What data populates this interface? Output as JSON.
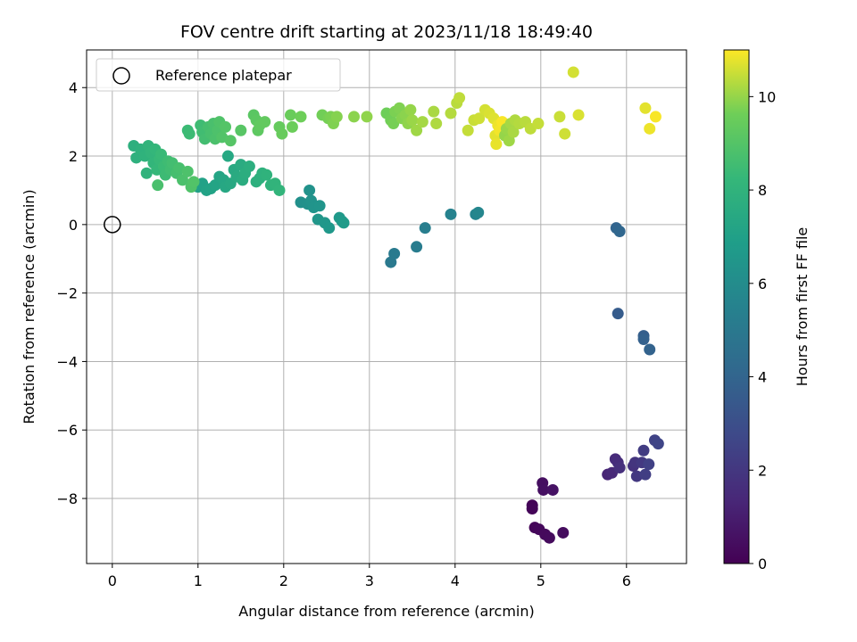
{
  "chart_data": {
    "type": "scatter",
    "title": "FOV centre drift starting at 2023/11/18 18:49:40",
    "xlabel": "Angular distance from reference (arcmin)",
    "ylabel": "Rotation from reference (arcmin)",
    "xlim": [
      -0.3,
      6.7
    ],
    "ylim": [
      -9.9,
      5.1
    ],
    "xticks": [
      0,
      1,
      2,
      3,
      4,
      5,
      6
    ],
    "yticks": [
      -8,
      -6,
      -4,
      -2,
      0,
      2,
      4
    ],
    "grid": true,
    "legend": {
      "location": "top-left",
      "entries": [
        "Reference platepar"
      ]
    },
    "reference_point": {
      "x": 0,
      "y": 0
    },
    "colorbar": {
      "label": "Hours from first FF file",
      "colormap": "viridis",
      "range": [
        0,
        11
      ],
      "ticks": [
        0,
        2,
        4,
        6,
        8,
        10
      ]
    },
    "points": [
      {
        "x": 4.9,
        "y": -8.2,
        "c": 0.1
      },
      {
        "x": 4.9,
        "y": -8.3,
        "c": 0.15
      },
      {
        "x": 4.93,
        "y": -8.85,
        "c": 0.2
      },
      {
        "x": 4.98,
        "y": -8.9,
        "c": 0.25
      },
      {
        "x": 5.05,
        "y": -9.05,
        "c": 0.3
      },
      {
        "x": 5.1,
        "y": -9.15,
        "c": 0.35
      },
      {
        "x": 5.26,
        "y": -9.0,
        "c": 0.4
      },
      {
        "x": 5.02,
        "y": -7.55,
        "c": 0.45
      },
      {
        "x": 5.03,
        "y": -7.75,
        "c": 0.5
      },
      {
        "x": 5.14,
        "y": -7.75,
        "c": 0.6
      },
      {
        "x": 5.78,
        "y": -7.3,
        "c": 1.3
      },
      {
        "x": 5.83,
        "y": -7.25,
        "c": 1.4
      },
      {
        "x": 5.87,
        "y": -6.85,
        "c": 1.5
      },
      {
        "x": 5.9,
        "y": -6.95,
        "c": 1.6
      },
      {
        "x": 5.92,
        "y": -7.1,
        "c": 1.7
      },
      {
        "x": 6.08,
        "y": -7.05,
        "c": 1.8
      },
      {
        "x": 6.1,
        "y": -6.95,
        "c": 1.9
      },
      {
        "x": 6.12,
        "y": -7.35,
        "c": 2.0
      },
      {
        "x": 6.18,
        "y": -6.95,
        "c": 2.1
      },
      {
        "x": 6.2,
        "y": -6.6,
        "c": 2.2
      },
      {
        "x": 6.22,
        "y": -7.3,
        "c": 2.3
      },
      {
        "x": 6.26,
        "y": -7.0,
        "c": 2.4
      },
      {
        "x": 6.33,
        "y": -6.3,
        "c": 2.5
      },
      {
        "x": 6.37,
        "y": -6.4,
        "c": 2.6
      },
      {
        "x": 5.9,
        "y": -2.6,
        "c": 3.6
      },
      {
        "x": 6.2,
        "y": -3.25,
        "c": 3.7
      },
      {
        "x": 6.2,
        "y": -3.35,
        "c": 3.8
      },
      {
        "x": 6.27,
        "y": -3.65,
        "c": 3.9
      },
      {
        "x": 5.88,
        "y": -0.1,
        "c": 4.0
      },
      {
        "x": 5.92,
        "y": -0.2,
        "c": 4.1
      },
      {
        "x": 3.25,
        "y": -1.1,
        "c": 5.0
      },
      {
        "x": 3.29,
        "y": -0.85,
        "c": 5.1
      },
      {
        "x": 3.55,
        "y": -0.65,
        "c": 5.2
      },
      {
        "x": 3.65,
        "y": -0.1,
        "c": 5.3
      },
      {
        "x": 3.95,
        "y": 0.3,
        "c": 5.5
      },
      {
        "x": 4.24,
        "y": 0.3,
        "c": 5.6
      },
      {
        "x": 4.27,
        "y": 0.35,
        "c": 5.7
      },
      {
        "x": 2.2,
        "y": 0.65,
        "c": 6.2
      },
      {
        "x": 2.28,
        "y": 0.6,
        "c": 6.25
      },
      {
        "x": 2.3,
        "y": 1.0,
        "c": 6.3
      },
      {
        "x": 2.32,
        "y": 0.7,
        "c": 6.35
      },
      {
        "x": 2.35,
        "y": 0.5,
        "c": 6.4
      },
      {
        "x": 2.42,
        "y": 0.55,
        "c": 6.45
      },
      {
        "x": 2.4,
        "y": 0.15,
        "c": 6.5
      },
      {
        "x": 2.48,
        "y": 0.05,
        "c": 6.55
      },
      {
        "x": 2.53,
        "y": -0.1,
        "c": 6.6
      },
      {
        "x": 2.65,
        "y": 0.2,
        "c": 6.65
      },
      {
        "x": 2.68,
        "y": 0.1,
        "c": 6.7
      },
      {
        "x": 2.7,
        "y": 0.05,
        "c": 6.75
      },
      {
        "x": 1.0,
        "y": 1.1,
        "c": 7.0
      },
      {
        "x": 1.05,
        "y": 1.2,
        "c": 7.05
      },
      {
        "x": 1.1,
        "y": 1.0,
        "c": 7.1
      },
      {
        "x": 1.15,
        "y": 1.05,
        "c": 7.15
      },
      {
        "x": 1.2,
        "y": 1.15,
        "c": 7.2
      },
      {
        "x": 1.25,
        "y": 1.4,
        "c": 7.25
      },
      {
        "x": 1.3,
        "y": 1.3,
        "c": 7.3
      },
      {
        "x": 1.32,
        "y": 1.1,
        "c": 7.35
      },
      {
        "x": 1.35,
        "y": 2.0,
        "c": 7.4
      },
      {
        "x": 1.38,
        "y": 1.2,
        "c": 7.45
      },
      {
        "x": 1.42,
        "y": 1.6,
        "c": 7.5
      },
      {
        "x": 1.45,
        "y": 1.4,
        "c": 7.55
      },
      {
        "x": 1.5,
        "y": 1.75,
        "c": 7.6
      },
      {
        "x": 1.52,
        "y": 1.3,
        "c": 7.65
      },
      {
        "x": 1.55,
        "y": 1.5,
        "c": 7.7
      },
      {
        "x": 1.6,
        "y": 1.7,
        "c": 7.75
      },
      {
        "x": 1.68,
        "y": 1.25,
        "c": 7.8
      },
      {
        "x": 1.72,
        "y": 1.35,
        "c": 7.85
      },
      {
        "x": 1.75,
        "y": 1.5,
        "c": 7.9
      },
      {
        "x": 1.8,
        "y": 1.45,
        "c": 7.95
      },
      {
        "x": 1.85,
        "y": 1.15,
        "c": 8.0
      },
      {
        "x": 1.9,
        "y": 1.2,
        "c": 8.05
      },
      {
        "x": 1.95,
        "y": 1.0,
        "c": 8.1
      },
      {
        "x": 0.25,
        "y": 2.3,
        "c": 7.8
      },
      {
        "x": 0.28,
        "y": 1.95,
        "c": 7.85
      },
      {
        "x": 0.33,
        "y": 2.2,
        "c": 7.9
      },
      {
        "x": 0.38,
        "y": 2.0,
        "c": 7.95
      },
      {
        "x": 0.4,
        "y": 1.5,
        "c": 8.0
      },
      {
        "x": 0.42,
        "y": 2.3,
        "c": 8.05
      },
      {
        "x": 0.45,
        "y": 2.1,
        "c": 8.1
      },
      {
        "x": 0.48,
        "y": 1.8,
        "c": 8.15
      },
      {
        "x": 0.5,
        "y": 2.2,
        "c": 8.2
      },
      {
        "x": 0.52,
        "y": 1.6,
        "c": 8.25
      },
      {
        "x": 0.55,
        "y": 1.9,
        "c": 8.3
      },
      {
        "x": 0.57,
        "y": 2.05,
        "c": 8.35
      },
      {
        "x": 0.6,
        "y": 1.7,
        "c": 8.4
      },
      {
        "x": 0.62,
        "y": 1.45,
        "c": 8.45
      },
      {
        "x": 0.65,
        "y": 1.85,
        "c": 8.5
      },
      {
        "x": 0.68,
        "y": 1.6,
        "c": 8.55
      },
      {
        "x": 0.7,
        "y": 1.8,
        "c": 8.6
      },
      {
        "x": 0.75,
        "y": 1.5,
        "c": 8.65
      },
      {
        "x": 0.78,
        "y": 1.65,
        "c": 8.7
      },
      {
        "x": 0.53,
        "y": 1.15,
        "c": 8.75
      },
      {
        "x": 0.82,
        "y": 1.3,
        "c": 8.8
      },
      {
        "x": 0.88,
        "y": 1.55,
        "c": 8.85
      },
      {
        "x": 0.92,
        "y": 1.1,
        "c": 8.9
      },
      {
        "x": 0.95,
        "y": 1.25,
        "c": 8.95
      },
      {
        "x": 0.88,
        "y": 2.75,
        "c": 8.4
      },
      {
        "x": 0.9,
        "y": 2.65,
        "c": 8.45
      },
      {
        "x": 1.03,
        "y": 2.9,
        "c": 8.5
      },
      {
        "x": 1.05,
        "y": 2.7,
        "c": 8.55
      },
      {
        "x": 1.08,
        "y": 2.5,
        "c": 8.6
      },
      {
        "x": 1.12,
        "y": 2.85,
        "c": 8.65
      },
      {
        "x": 1.15,
        "y": 2.65,
        "c": 8.7
      },
      {
        "x": 1.18,
        "y": 2.95,
        "c": 8.75
      },
      {
        "x": 1.2,
        "y": 2.5,
        "c": 8.8
      },
      {
        "x": 1.23,
        "y": 2.75,
        "c": 8.85
      },
      {
        "x": 1.25,
        "y": 3.0,
        "c": 8.9
      },
      {
        "x": 1.28,
        "y": 2.55,
        "c": 8.95
      },
      {
        "x": 1.32,
        "y": 2.85,
        "c": 9.0
      },
      {
        "x": 1.38,
        "y": 2.45,
        "c": 9.05
      },
      {
        "x": 1.5,
        "y": 2.75,
        "c": 9.1
      },
      {
        "x": 1.65,
        "y": 3.2,
        "c": 9.15
      },
      {
        "x": 1.68,
        "y": 3.05,
        "c": 9.2
      },
      {
        "x": 1.7,
        "y": 2.75,
        "c": 9.25
      },
      {
        "x": 1.72,
        "y": 2.9,
        "c": 9.3
      },
      {
        "x": 1.78,
        "y": 3.0,
        "c": 9.35
      },
      {
        "x": 1.95,
        "y": 2.85,
        "c": 9.4
      },
      {
        "x": 1.98,
        "y": 2.65,
        "c": 9.45
      },
      {
        "x": 2.08,
        "y": 3.2,
        "c": 9.5
      },
      {
        "x": 2.1,
        "y": 2.85,
        "c": 9.55
      },
      {
        "x": 2.2,
        "y": 3.15,
        "c": 9.6
      },
      {
        "x": 2.45,
        "y": 3.2,
        "c": 9.65
      },
      {
        "x": 2.52,
        "y": 3.1,
        "c": 9.7
      },
      {
        "x": 2.55,
        "y": 3.15,
        "c": 9.75
      },
      {
        "x": 2.58,
        "y": 2.95,
        "c": 9.8
      },
      {
        "x": 2.62,
        "y": 3.15,
        "c": 9.85
      },
      {
        "x": 2.82,
        "y": 3.15,
        "c": 9.9
      },
      {
        "x": 2.97,
        "y": 3.15,
        "c": 9.95
      },
      {
        "x": 3.2,
        "y": 3.25,
        "c": 9.6
      },
      {
        "x": 3.25,
        "y": 3.05,
        "c": 9.65
      },
      {
        "x": 3.28,
        "y": 2.95,
        "c": 9.7
      },
      {
        "x": 3.3,
        "y": 3.3,
        "c": 9.75
      },
      {
        "x": 3.35,
        "y": 3.4,
        "c": 9.8
      },
      {
        "x": 3.38,
        "y": 3.1,
        "c": 9.85
      },
      {
        "x": 3.42,
        "y": 3.2,
        "c": 9.9
      },
      {
        "x": 3.45,
        "y": 2.95,
        "c": 9.95
      },
      {
        "x": 3.48,
        "y": 3.35,
        "c": 10.0
      },
      {
        "x": 3.5,
        "y": 3.05,
        "c": 10.05
      },
      {
        "x": 3.55,
        "y": 2.75,
        "c": 10.1
      },
      {
        "x": 3.62,
        "y": 3.0,
        "c": 10.15
      },
      {
        "x": 3.75,
        "y": 3.3,
        "c": 10.2
      },
      {
        "x": 3.78,
        "y": 2.95,
        "c": 10.25
      },
      {
        "x": 3.95,
        "y": 3.25,
        "c": 10.3
      },
      {
        "x": 4.02,
        "y": 3.55,
        "c": 10.35
      },
      {
        "x": 4.05,
        "y": 3.7,
        "c": 10.4
      },
      {
        "x": 4.15,
        "y": 2.75,
        "c": 10.45
      },
      {
        "x": 4.22,
        "y": 3.05,
        "c": 10.5
      },
      {
        "x": 4.28,
        "y": 3.1,
        "c": 10.55
      },
      {
        "x": 4.35,
        "y": 3.35,
        "c": 10.6
      },
      {
        "x": 4.4,
        "y": 3.25,
        "c": 10.65
      },
      {
        "x": 4.45,
        "y": 3.1,
        "c": 10.7
      },
      {
        "x": 4.47,
        "y": 2.6,
        "c": 10.75
      },
      {
        "x": 4.48,
        "y": 2.35,
        "c": 10.8
      },
      {
        "x": 4.5,
        "y": 2.9,
        "c": 10.85
      },
      {
        "x": 4.52,
        "y": 2.75,
        "c": 10.9
      },
      {
        "x": 4.55,
        "y": 3.0,
        "c": 10.95
      },
      {
        "x": 4.58,
        "y": 2.6,
        "c": 10.0
      },
      {
        "x": 4.6,
        "y": 2.8,
        "c": 10.05
      },
      {
        "x": 4.63,
        "y": 2.45,
        "c": 10.1
      },
      {
        "x": 4.65,
        "y": 2.95,
        "c": 10.15
      },
      {
        "x": 4.68,
        "y": 2.7,
        "c": 10.2
      },
      {
        "x": 4.7,
        "y": 3.05,
        "c": 10.25
      },
      {
        "x": 4.75,
        "y": 2.95,
        "c": 10.3
      },
      {
        "x": 4.82,
        "y": 3.0,
        "c": 10.35
      },
      {
        "x": 4.88,
        "y": 2.8,
        "c": 10.4
      },
      {
        "x": 4.97,
        "y": 2.95,
        "c": 10.45
      },
      {
        "x": 5.22,
        "y": 3.15,
        "c": 10.5
      },
      {
        "x": 5.28,
        "y": 2.65,
        "c": 10.55
      },
      {
        "x": 5.38,
        "y": 4.45,
        "c": 10.6
      },
      {
        "x": 5.44,
        "y": 3.2,
        "c": 10.65
      },
      {
        "x": 6.22,
        "y": 3.4,
        "c": 10.75
      },
      {
        "x": 6.27,
        "y": 2.8,
        "c": 10.85
      },
      {
        "x": 6.34,
        "y": 3.15,
        "c": 10.95
      }
    ]
  }
}
